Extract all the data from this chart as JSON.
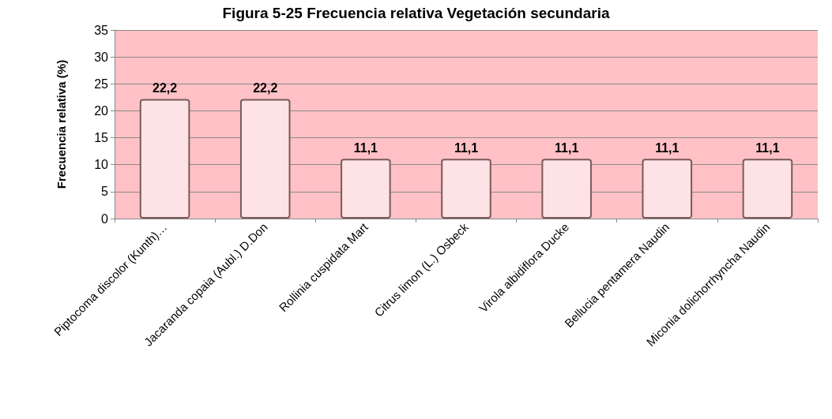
{
  "chart_data": {
    "type": "bar",
    "title": "Figura 5-25 Frecuencia relativa Vegetación secundaria",
    "ylabel": "Frecuencia relativa (%)",
    "categories": [
      "Piptocoma discolor (Kunth)…",
      "Jacaranda copaia (Aubl.) D.Don",
      "Rollinia cuspidata Mart",
      "Citrus limon (L.) Osbeck",
      "Virola albidiflora Ducke",
      "Bellucia pentamera Naudin",
      "Miconia dolichorrhyncha Naudin"
    ],
    "values": [
      22.2,
      22.2,
      11.1,
      11.1,
      11.1,
      11.1,
      11.1
    ],
    "value_labels": [
      "22,2",
      "22,2",
      "11,1",
      "11,1",
      "11,1",
      "11,1",
      "11,1"
    ],
    "color": "#fde3e5",
    "ylim": [
      0,
      35
    ],
    "yticks": [
      0,
      5,
      10,
      15,
      20,
      25,
      30,
      35
    ],
    "grid": "y"
  }
}
